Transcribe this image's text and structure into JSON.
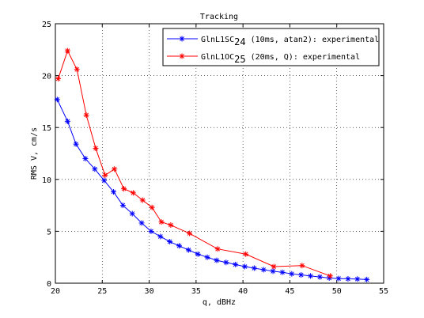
{
  "chart_data": {
    "type": "line",
    "title": "Tracking",
    "xlabel": "q, dBHz",
    "ylabel": "RMS V, cm/s",
    "xlim": [
      20,
      55
    ],
    "ylim": [
      0,
      25
    ],
    "xticks": [
      20,
      25,
      30,
      35,
      40,
      45,
      50,
      55
    ],
    "yticks": [
      0,
      5,
      10,
      15,
      20,
      25
    ],
    "grid": true,
    "legend_position": "top-right",
    "series": [
      {
        "label_main": "GlnL1SC",
        "label_sub": "24",
        "label_rest": " (10ms, atan2): experimental",
        "color": "#0000ff",
        "marker": "asterisk",
        "x": [
          20.2,
          21.3,
          22.2,
          23.2,
          24.2,
          25.2,
          26.2,
          27.2,
          28.2,
          29.2,
          30.2,
          31.2,
          32.2,
          33.2,
          34.2,
          35.2,
          36.2,
          37.2,
          38.2,
          39.2,
          40.2,
          41.2,
          42.2,
          43.2,
          44.2,
          45.2,
          46.2,
          47.2,
          48.2,
          49.2,
          50.2,
          51.2,
          52.2,
          53.2
        ],
        "y": [
          17.7,
          15.6,
          13.4,
          12.0,
          11.0,
          9.9,
          8.8,
          7.5,
          6.7,
          5.8,
          5.0,
          4.5,
          4.0,
          3.6,
          3.2,
          2.8,
          2.5,
          2.2,
          2.0,
          1.8,
          1.6,
          1.45,
          1.3,
          1.15,
          1.05,
          0.9,
          0.8,
          0.7,
          0.6,
          0.5,
          0.45,
          0.42,
          0.4,
          0.35
        ]
      },
      {
        "label_main": "GlnL1OC",
        "label_sub": "25",
        "label_rest": " (20ms, Q): experimental",
        "color": "#ff0000",
        "marker": "asterisk",
        "x": [
          20.3,
          21.3,
          22.3,
          23.3,
          24.3,
          25.3,
          26.3,
          27.3,
          28.3,
          29.3,
          30.3,
          31.3,
          32.3,
          34.3,
          37.3,
          40.3,
          43.3,
          46.3,
          49.3
        ],
        "y": [
          19.7,
          22.4,
          20.6,
          16.2,
          13.0,
          10.4,
          11.0,
          9.1,
          8.7,
          8.0,
          7.3,
          5.9,
          5.6,
          4.8,
          3.3,
          2.8,
          1.6,
          1.7,
          0.7
        ]
      }
    ]
  }
}
